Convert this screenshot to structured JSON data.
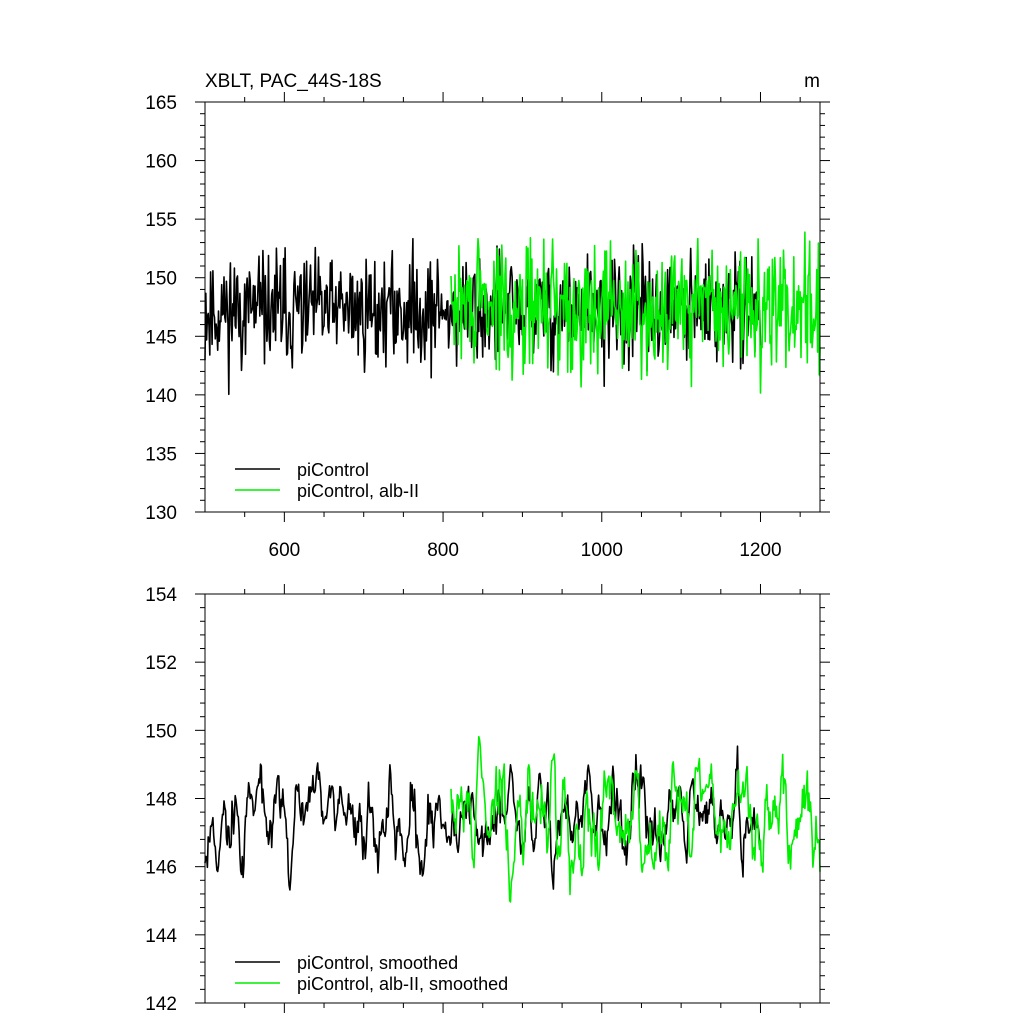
{
  "chart_data": [
    {
      "type": "line",
      "title": "XBLT, PAC_44S-18S",
      "units": "m",
      "xlim": [
        500,
        1275
      ],
      "ylim": [
        130,
        165
      ],
      "xticks": [
        600,
        800,
        1000,
        1200
      ],
      "yticks": [
        130,
        135,
        140,
        145,
        150,
        155,
        160,
        165
      ],
      "series": [
        {
          "name": "piControl",
          "color": "#000000",
          "x_start": 500,
          "x_end": 1200,
          "mean": 147.2,
          "amplitude": 4.2,
          "seed": 11
        },
        {
          "name": "piControl, alb-II",
          "color": "#00ee00",
          "x_start": 810,
          "x_end": 1275,
          "mean": 147.5,
          "amplitude": 5.0,
          "seed": 29
        }
      ],
      "legend_position": "bottom-left"
    },
    {
      "type": "line",
      "title": "",
      "xlim": [
        500,
        1275
      ],
      "ylim": [
        142,
        154
      ],
      "xticks": [
        600,
        800,
        1000,
        1200
      ],
      "yticks": [
        142,
        144,
        146,
        148,
        150,
        152,
        154
      ],
      "series": [
        {
          "name": "piControl, smoothed",
          "color": "#000000",
          "x_start": 500,
          "x_end": 1200,
          "mean": 147.3,
          "amplitude": 1.3,
          "seed": 11
        },
        {
          "name": "piControl, alb-II, smoothed",
          "color": "#00ee00",
          "x_start": 810,
          "x_end": 1275,
          "mean": 147.5,
          "amplitude": 1.6,
          "seed": 29
        }
      ],
      "legend_position": "bottom-left"
    }
  ]
}
